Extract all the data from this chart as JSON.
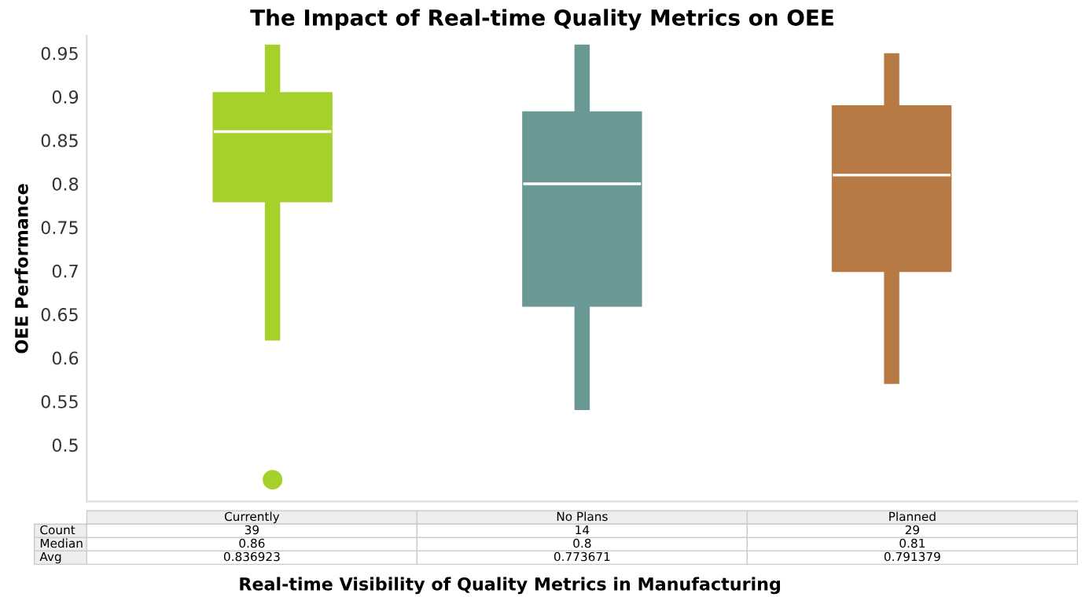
{
  "chart_data": {
    "type": "box",
    "title": "The Impact of Real-time Quality Metrics on OEE",
    "xlabel": "Real-time Visibility of Quality Metrics in Manufacturing",
    "ylabel": "OEE Performance",
    "categories": [
      "Currently",
      "No Plans",
      "Planned"
    ],
    "colors": [
      "#a6d12a",
      "#6a9894",
      "#b87a45"
    ],
    "boxes": [
      {
        "low": 0.62,
        "q1": 0.78,
        "median": 0.86,
        "q3": 0.904,
        "high": 0.96,
        "outliers": [
          0.46
        ]
      },
      {
        "low": 0.54,
        "q1": 0.66,
        "median": 0.8,
        "q3": 0.882,
        "high": 0.96
      },
      {
        "low": 0.57,
        "q1": 0.7,
        "median": 0.81,
        "q3": 0.889,
        "high": 0.95
      }
    ],
    "annotations": [
      "Count",
      "39",
      "14",
      "29",
      "Median",
      "0.86",
      "0.8",
      "0.81",
      "Avg",
      "0.836923",
      "0.773671",
      "0.791379"
    ],
    "ylim": [
      0.435,
      0.97
    ],
    "yticks": [
      0.5,
      0.55,
      0.6,
      0.65,
      0.7,
      0.75,
      0.8,
      0.85,
      0.9,
      0.95
    ],
    "grid": false
  }
}
